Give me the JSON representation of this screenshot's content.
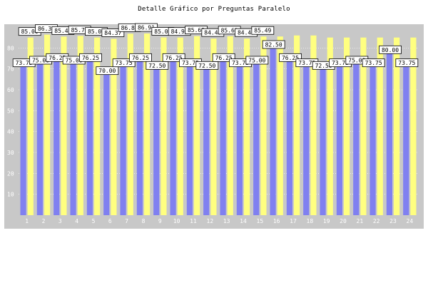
{
  "chart_title": "Detalle Gráfico por Preguntas Paralelo",
  "colors": {
    "plot_bg": "#c8c8c8",
    "frame_bg": "#c8c8c8",
    "series_a": "#8080f0",
    "series_b": "#ffff80",
    "gridline": "#ffffff"
  },
  "chart_data": {
    "type": "bar",
    "title": "Detalle Gráfico por Preguntas Paralelo",
    "xlabel": "",
    "ylabel": "",
    "ylim": [
      0,
      90
    ],
    "yticks": [
      10,
      20,
      30,
      40,
      50,
      60,
      70,
      80
    ],
    "grid": true,
    "categories": [
      "1",
      "2",
      "3",
      "4",
      "5",
      "6",
      "7",
      "8",
      "9",
      "10",
      "11",
      "12",
      "13",
      "14",
      "15",
      "16",
      "17",
      "18",
      "19",
      "20",
      "21",
      "22",
      "23",
      "24"
    ],
    "series": [
      {
        "values": [
          73.75,
          75.0,
          76.25,
          75.0,
          76.25,
          70.0,
          73.75,
          76.25,
          72.5,
          76.25,
          73.75,
          72.5,
          76.25,
          73.75,
          75.0,
          82.5,
          76.25,
          73.75,
          72.5,
          73.75,
          75.0,
          73.75,
          80.0,
          73.75
        ],
        "labels": [
          "73.75",
          "75.00",
          "76.25",
          "75.00",
          "76.25",
          "70.00",
          "73.75",
          "76.25",
          "72.50",
          "76.25",
          "73.75",
          "72.50",
          "76.25",
          "73.75",
          "75.00",
          "82.50",
          "76.25",
          "73.75",
          "72.50",
          "73.75",
          "75.00",
          "73.75",
          "80.00",
          "73.75"
        ]
      },
      {
        "values": [
          85.0,
          86.37,
          85.45,
          85.79,
          85.01,
          84.37,
          86.81,
          86.91,
          85.06,
          84.99,
          85.69,
          84.49,
          85.63,
          84.48,
          85.49,
          85.5,
          86.0,
          86.0,
          85.0,
          85.0,
          85.0,
          85.0,
          85.0,
          85.0
        ],
        "labels": [
          "85.00",
          "86.37",
          "85.45",
          "85.79",
          "85.01",
          "84.37",
          "86.81",
          "86.91",
          "85.06",
          "84.99",
          "85.69",
          "84.49",
          "85.63",
          "84.48",
          "85.49",
          "",
          "",
          "",
          "",
          "",
          "",
          "",
          "",
          ""
        ]
      }
    ]
  }
}
